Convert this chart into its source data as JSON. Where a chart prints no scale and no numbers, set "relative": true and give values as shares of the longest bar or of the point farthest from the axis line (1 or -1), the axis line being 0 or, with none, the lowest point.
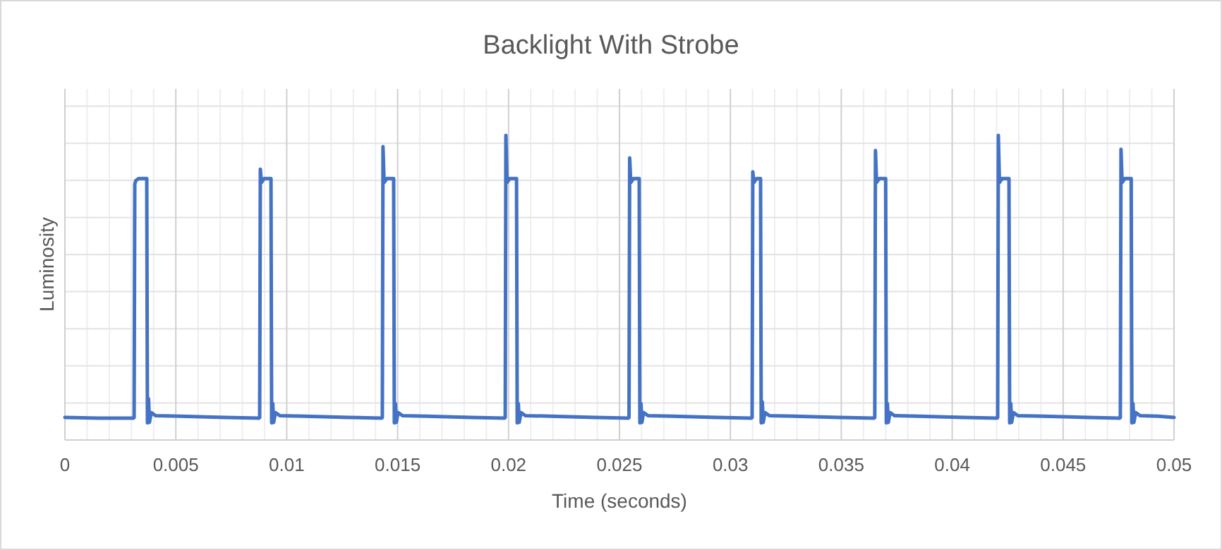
{
  "chart_data": {
    "type": "line",
    "title": "Backlight With Strobe",
    "xlabel": "Time (seconds)",
    "ylabel": "Luminosity",
    "relative": true,
    "grid": true,
    "xlim": [
      0,
      0.05
    ],
    "xticks": [
      0,
      0.005,
      0.01,
      0.015,
      0.02,
      0.025,
      0.03,
      0.035,
      0.04,
      0.045,
      0.05
    ],
    "series": [
      {
        "color": "#4472c4",
        "x": [
          0,
          0.0015,
          0.0031,
          0.00312,
          0.00315,
          0.0032,
          0.00332,
          0.00369,
          0.00372,
          0.00377,
          0.00381,
          0.00389,
          0.00409,
          0.0052,
          0.0072,
          0.00876,
          0.00878,
          0.00881,
          0.00886,
          0.00898,
          0.00929,
          0.00932,
          0.00937,
          0.00941,
          0.00949,
          0.00969,
          0.0108,
          0.0128,
          0.01429,
          0.01431,
          0.01434,
          0.01439,
          0.01451,
          0.01482,
          0.01485,
          0.0149,
          0.01494,
          0.01502,
          0.01522,
          0.0163,
          0.0183,
          0.01983,
          0.01985,
          0.01988,
          0.01993,
          0.02005,
          0.02036,
          0.02039,
          0.02044,
          0.02048,
          0.02056,
          0.02076,
          0.0219,
          0.0239,
          0.02541,
          0.02543,
          0.02546,
          0.02551,
          0.02563,
          0.02589,
          0.02592,
          0.02597,
          0.02601,
          0.02609,
          0.02629,
          0.0274,
          0.0294,
          0.03096,
          0.03098,
          0.03101,
          0.03106,
          0.03118,
          0.03136,
          0.03139,
          0.03144,
          0.03148,
          0.03156,
          0.03176,
          0.0329,
          0.0349,
          0.03649,
          0.03651,
          0.03654,
          0.03659,
          0.03671,
          0.037,
          0.03703,
          0.03708,
          0.03712,
          0.0372,
          0.0374,
          0.0385,
          0.0405,
          0.04203,
          0.04205,
          0.04208,
          0.04213,
          0.04225,
          0.04256,
          0.04259,
          0.04264,
          0.04268,
          0.04276,
          0.04296,
          0.0441,
          0.0461,
          0.04756,
          0.04758,
          0.04761,
          0.04766,
          0.04778,
          0.04807,
          0.0481,
          0.04815,
          0.04819,
          0.04827,
          0.04847,
          0.0493,
          0.05
        ],
        "values": [
          0.074,
          0.072,
          0.072,
          0.074,
          0.84,
          0.852,
          0.858,
          0.858,
          0.056,
          0.136,
          0.058,
          0.09,
          0.08,
          0.078,
          0.074,
          0.072,
          0.074,
          0.889,
          0.845,
          0.858,
          0.858,
          0.056,
          0.12,
          0.058,
          0.09,
          0.08,
          0.078,
          0.074,
          0.072,
          0.074,
          0.963,
          0.845,
          0.858,
          0.858,
          0.056,
          0.12,
          0.058,
          0.09,
          0.08,
          0.078,
          0.074,
          0.072,
          0.074,
          1.0,
          0.845,
          0.858,
          0.858,
          0.056,
          0.12,
          0.058,
          0.09,
          0.08,
          0.078,
          0.074,
          0.072,
          0.074,
          0.926,
          0.845,
          0.858,
          0.858,
          0.056,
          0.12,
          0.058,
          0.09,
          0.08,
          0.078,
          0.074,
          0.072,
          0.074,
          0.88,
          0.845,
          0.858,
          0.858,
          0.056,
          0.125,
          0.058,
          0.09,
          0.08,
          0.078,
          0.074,
          0.072,
          0.074,
          0.95,
          0.845,
          0.858,
          0.858,
          0.056,
          0.12,
          0.058,
          0.09,
          0.08,
          0.078,
          0.074,
          0.072,
          0.074,
          1.0,
          0.845,
          0.858,
          0.858,
          0.056,
          0.12,
          0.058,
          0.09,
          0.08,
          0.078,
          0.074,
          0.072,
          0.074,
          0.954,
          0.845,
          0.858,
          0.858,
          0.056,
          0.12,
          0.058,
          0.09,
          0.08,
          0.078,
          0.074
        ]
      }
    ]
  }
}
